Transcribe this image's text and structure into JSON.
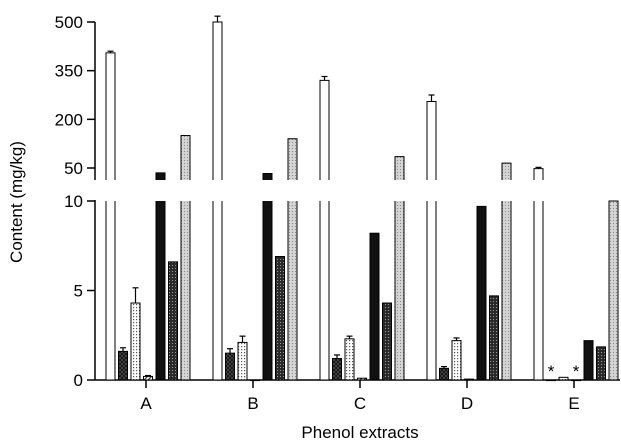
{
  "chart_data": {
    "type": "bar",
    "xlabel": "Phenol extracts",
    "ylabel": "Content (mg/kg)",
    "categories": [
      "A",
      "B",
      "C",
      "D",
      "E"
    ],
    "axis_break": true,
    "upper_panel": {
      "ylim": [
        0,
        500
      ],
      "ticks": [
        50,
        200,
        350,
        500
      ]
    },
    "lower_panel": {
      "ylim": [
        0,
        10
      ],
      "ticks": [
        0,
        5,
        10
      ]
    },
    "grid": false,
    "legend": "none",
    "series": [
      {
        "pattern": "white",
        "values": [
          405,
          500,
          320,
          255,
          48
        ],
        "errors": [
          5,
          18,
          12,
          20,
          4
        ]
      },
      {
        "pattern": "dark-crosshatch",
        "values": [
          1.6,
          1.5,
          1.2,
          0.65,
          0.0
        ],
        "errors": [
          0.2,
          0.25,
          0.2,
          0.1,
          0.0
        ]
      },
      {
        "pattern": "light-dots",
        "values": [
          4.3,
          2.1,
          2.3,
          2.2,
          0.15
        ],
        "errors": [
          0.85,
          0.35,
          0.15,
          0.15,
          0.0
        ]
      },
      {
        "pattern": "diagonal-hatch",
        "values": [
          0.2,
          0.0,
          0.1,
          0.05,
          0.0
        ],
        "errors": [
          0.05,
          0.0,
          0.0,
          0.0,
          0.0
        ]
      },
      {
        "pattern": "black",
        "values": [
          35,
          33,
          8.2,
          9.7,
          2.2
        ],
        "errors": [
          0,
          0,
          0,
          0,
          0
        ]
      },
      {
        "pattern": "dark-dots",
        "values": [
          6.6,
          6.9,
          4.3,
          4.7,
          1.85
        ],
        "errors": [
          0,
          0,
          0,
          0,
          0
        ]
      },
      {
        "pattern": "light-grey",
        "values": [
          150,
          140,
          85,
          65,
          10
        ],
        "errors": [
          0,
          0,
          0,
          0,
          0
        ]
      }
    ],
    "annotations": [
      {
        "text": "*",
        "category": "E",
        "series_index": 1
      },
      {
        "text": "*",
        "category": "E",
        "series_index": 3
      }
    ],
    "colors": {
      "axis": "#000000",
      "white_fill": "#ffffff",
      "black_fill": "#111111",
      "grey_fill": "#c8c8c8"
    }
  }
}
